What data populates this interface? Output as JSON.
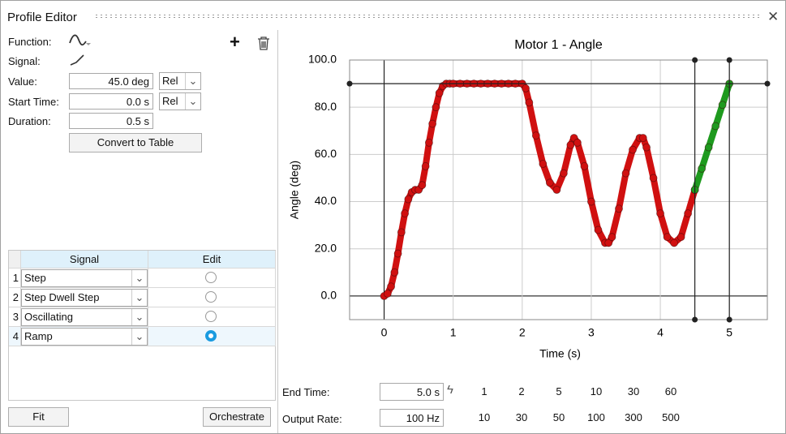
{
  "window": {
    "title": "Profile Editor"
  },
  "form": {
    "function_label": "Function:",
    "signal_label": "Signal:",
    "value_label": "Value:",
    "value": "45.0 deg",
    "value_mode": "Rel",
    "start_label": "Start Time:",
    "start": "0.0 s",
    "start_mode": "Rel",
    "duration_label": "Duration:",
    "duration": "0.5 s",
    "convert": "Convert to Table"
  },
  "table": {
    "headers": [
      "Signal",
      "Edit"
    ],
    "rows": [
      [
        "1",
        "Step"
      ],
      [
        "2",
        "Step Dwell Step"
      ],
      [
        "3",
        "Oscillating"
      ],
      [
        "4",
        "Ramp"
      ]
    ],
    "selected_row": 3
  },
  "buttons": {
    "fit": "Fit",
    "orchestrate": "Orchestrate"
  },
  "timing": {
    "end_label": "End Time:",
    "end": "5.0 s",
    "rate_label": "Output Rate:",
    "rate": "100 Hz",
    "end_presets": [
      "1",
      "2",
      "5",
      "10",
      "30",
      "60"
    ],
    "rate_presets": [
      "10",
      "30",
      "50",
      "100",
      "300",
      "500"
    ]
  },
  "chart_data": {
    "type": "line",
    "title": "Motor 1 - Angle",
    "x_label": "Time (s)",
    "y_label": "Angle (deg)",
    "series": [
      {
        "color": "#d01010",
        "x": [
          0,
          0.05,
          0.1,
          0.15,
          0.2,
          0.25,
          0.3,
          0.35,
          0.4,
          0.45,
          0.5,
          0.55,
          0.6,
          0.65,
          0.7,
          0.75,
          0.8,
          0.85,
          0.9,
          0.95,
          1.0,
          1.1,
          1.2,
          1.3,
          1.4,
          1.5,
          1.6,
          1.7,
          1.8,
          1.9,
          2.0,
          2.05,
          2.1,
          2.2,
          2.3,
          2.4,
          2.5,
          2.6,
          2.7,
          2.75,
          2.8,
          2.9,
          3.0,
          3.1,
          3.2,
          3.25,
          3.3,
          3.4,
          3.5,
          3.6,
          3.7,
          3.75,
          3.8,
          3.9,
          4.0,
          4.1,
          4.2,
          4.3,
          4.4,
          4.5
        ],
        "values": [
          0,
          1,
          4,
          10,
          18,
          27,
          35,
          41,
          44,
          45,
          45,
          47,
          55,
          65,
          73,
          80,
          86,
          89,
          90,
          90,
          90,
          90,
          90,
          90,
          90,
          90,
          90,
          90,
          90,
          90,
          90,
          88,
          82,
          68,
          56,
          48,
          45,
          52,
          64,
          67,
          65,
          55,
          40,
          28,
          22.5,
          22.5,
          25,
          37,
          52,
          62,
          67,
          67,
          63,
          50,
          35,
          25,
          22.5,
          25,
          35,
          45
        ]
      },
      {
        "color": "#1e9a1e",
        "x": [
          4.5,
          4.6,
          4.7,
          4.8,
          4.9,
          5.0
        ],
        "values": [
          45,
          54,
          63,
          72,
          81,
          90
        ]
      }
    ],
    "xlim": [
      -0.5,
      5.55
    ],
    "ylim": [
      -10,
      100
    ],
    "xticks": [
      0,
      1,
      2,
      3,
      4,
      5
    ],
    "yticks": [
      {
        "value": 0,
        "label": "0.0"
      },
      {
        "value": 20,
        "label": "20.0"
      },
      {
        "value": 40,
        "label": "40.0"
      },
      {
        "value": 60,
        "label": "60.0"
      },
      {
        "value": 80,
        "label": "80.0"
      },
      {
        "value": 100,
        "label": "100.0"
      }
    ],
    "grid": true,
    "cursor_x": [
      4.5,
      5
    ],
    "cursor_y": [
      90
    ]
  }
}
